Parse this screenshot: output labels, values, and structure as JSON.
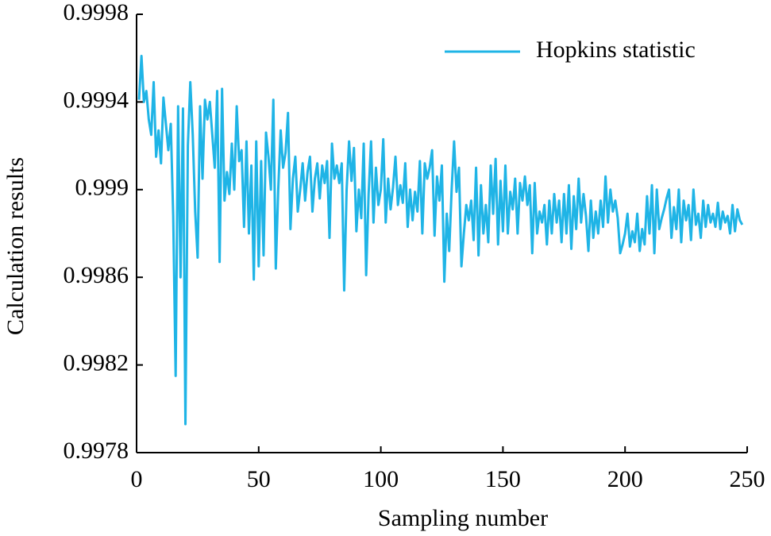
{
  "chart_data": {
    "type": "line",
    "xlabel": "Sampling number",
    "ylabel": "Calculation results",
    "xlim": [
      0,
      250
    ],
    "xticks": [
      0,
      50,
      100,
      150,
      200,
      250
    ],
    "ylim": [
      0.9978,
      0.9998
    ],
    "yticks": [
      0.9978,
      0.9982,
      0.9986,
      0.999,
      0.9994,
      0.9998
    ],
    "legend": "upper right",
    "x": [
      1,
      2,
      3,
      4,
      5,
      6,
      7,
      8,
      9,
      10,
      11,
      12,
      13,
      14,
      15,
      16,
      17,
      18,
      19,
      20,
      21,
      22,
      23,
      24,
      25,
      26,
      27,
      28,
      29,
      30,
      31,
      32,
      33,
      34,
      35,
      36,
      37,
      38,
      39,
      40,
      41,
      42,
      43,
      44,
      45,
      46,
      47,
      48,
      49,
      50,
      51,
      52,
      53,
      54,
      55,
      56,
      57,
      58,
      59,
      60,
      61,
      62,
      63,
      64,
      65,
      66,
      67,
      68,
      69,
      70,
      71,
      72,
      73,
      74,
      75,
      76,
      77,
      78,
      79,
      80,
      81,
      82,
      83,
      84,
      85,
      86,
      87,
      88,
      89,
      90,
      91,
      92,
      93,
      94,
      95,
      96,
      97,
      98,
      99,
      100,
      101,
      102,
      103,
      104,
      105,
      106,
      107,
      108,
      109,
      110,
      111,
      112,
      113,
      114,
      115,
      116,
      117,
      118,
      119,
      120,
      121,
      122,
      123,
      124,
      125,
      126,
      127,
      128,
      129,
      130,
      131,
      132,
      133,
      134,
      135,
      136,
      137,
      138,
      139,
      140,
      141,
      142,
      143,
      144,
      145,
      146,
      147,
      148,
      149,
      150,
      151,
      152,
      153,
      154,
      155,
      156,
      157,
      158,
      159,
      160,
      161,
      162,
      163,
      164,
      165,
      166,
      167,
      168,
      169,
      170,
      171,
      172,
      173,
      174,
      175,
      176,
      177,
      178,
      179,
      180,
      181,
      182,
      183,
      184,
      185,
      186,
      187,
      188,
      189,
      190,
      191,
      192,
      193,
      194,
      195,
      196,
      197,
      198,
      199,
      200,
      201,
      202,
      203,
      204,
      205,
      206,
      207,
      208,
      209,
      210,
      211,
      212,
      213,
      214,
      215,
      216,
      217,
      218,
      219,
      220,
      221,
      222,
      223,
      224,
      225,
      226,
      227,
      228,
      229,
      230,
      231,
      232,
      233,
      234,
      235,
      236,
      237,
      238,
      239,
      240,
      241,
      242,
      243,
      244,
      245,
      246,
      247,
      248
    ],
    "series": [
      {
        "name": "Hopkins statistic",
        "color": "#1fb4e6",
        "values": [
          0.99941,
          0.99961,
          0.9994,
          0.99945,
          0.99932,
          0.99925,
          0.99949,
          0.99915,
          0.99927,
          0.99912,
          0.99942,
          0.9993,
          0.99918,
          0.9993,
          0.99888,
          0.99815,
          0.99938,
          0.9986,
          0.99937,
          0.99793,
          0.9992,
          0.99949,
          0.99925,
          0.9989,
          0.99869,
          0.99938,
          0.99905,
          0.99941,
          0.99932,
          0.9994,
          0.99925,
          0.9991,
          0.99945,
          0.99867,
          0.99946,
          0.99895,
          0.99908,
          0.99898,
          0.99921,
          0.999,
          0.99938,
          0.99913,
          0.99918,
          0.99883,
          0.99922,
          0.9988,
          0.99911,
          0.99859,
          0.99922,
          0.99865,
          0.99913,
          0.9987,
          0.99926,
          0.99915,
          0.999,
          0.99941,
          0.99864,
          0.999,
          0.99927,
          0.9991,
          0.99917,
          0.99935,
          0.99882,
          0.99905,
          0.99915,
          0.9989,
          0.999,
          0.99912,
          0.99895,
          0.99908,
          0.99915,
          0.9989,
          0.99905,
          0.99912,
          0.99896,
          0.99911,
          0.99903,
          0.99913,
          0.99878,
          0.99921,
          0.99905,
          0.99911,
          0.99903,
          0.99912,
          0.99854,
          0.999,
          0.99922,
          0.99904,
          0.99919,
          0.99881,
          0.999,
          0.99887,
          0.99921,
          0.99861,
          0.99898,
          0.99922,
          0.99885,
          0.9991,
          0.99893,
          0.999,
          0.99923,
          0.99885,
          0.99905,
          0.99891,
          0.99901,
          0.99915,
          0.99893,
          0.99902,
          0.99894,
          0.99912,
          0.99883,
          0.999,
          0.99886,
          0.99899,
          0.9989,
          0.99913,
          0.9988,
          0.99912,
          0.99905,
          0.9991,
          0.99918,
          0.99879,
          0.99906,
          0.99895,
          0.99911,
          0.99858,
          0.99889,
          0.99872,
          0.999,
          0.99922,
          0.99899,
          0.9991,
          0.99865,
          0.9988,
          0.99893,
          0.99886,
          0.99895,
          0.99877,
          0.9991,
          0.9987,
          0.99902,
          0.9988,
          0.99893,
          0.99876,
          0.99911,
          0.99889,
          0.99914,
          0.99875,
          0.99904,
          0.99881,
          0.99911,
          0.9988,
          0.99899,
          0.99891,
          0.99905,
          0.9988,
          0.99903,
          0.99895,
          0.99906,
          0.99893,
          0.99902,
          0.99871,
          0.99903,
          0.9988,
          0.9989,
          0.99885,
          0.99893,
          0.99875,
          0.99895,
          0.9988,
          0.99898,
          0.99885,
          0.99895,
          0.99876,
          0.99898,
          0.9988,
          0.99902,
          0.99873,
          0.99897,
          0.99882,
          0.99905,
          0.99885,
          0.99898,
          0.99888,
          0.99872,
          0.99895,
          0.99878,
          0.9989,
          0.9988,
          0.99895,
          0.99883,
          0.99906,
          0.99885,
          0.999,
          0.9989,
          0.99895,
          0.99887,
          0.99871,
          0.99875,
          0.9988,
          0.99889,
          0.99874,
          0.99881,
          0.99876,
          0.99889,
          0.99872,
          0.99882,
          0.99875,
          0.99897,
          0.9988,
          0.99902,
          0.99871,
          0.999,
          0.99882,
          0.99887,
          0.99891,
          0.99896,
          0.999,
          0.99878,
          0.99892,
          0.99882,
          0.999,
          0.99876,
          0.99895,
          0.99886,
          0.99893,
          0.99877,
          0.999,
          0.99884,
          0.99889,
          0.99878,
          0.99895,
          0.99883,
          0.99893,
          0.99885,
          0.99889,
          0.99883,
          0.99894,
          0.99882,
          0.9989,
          0.99885,
          0.99888,
          0.9988,
          0.99893,
          0.99881,
          0.99891,
          0.99886,
          0.99884
        ]
      }
    ]
  }
}
